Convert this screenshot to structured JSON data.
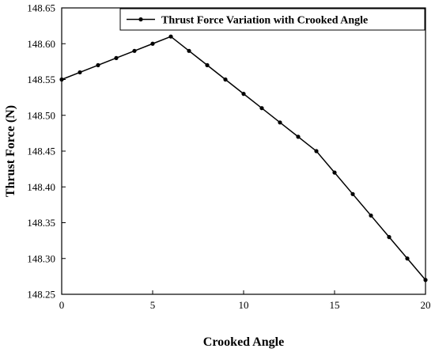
{
  "chart_data": {
    "type": "line",
    "title": "",
    "xlabel": "Crooked Angle",
    "ylabel": "Thrust Force (N)",
    "xlim": [
      0,
      20
    ],
    "ylim": [
      148.25,
      148.65
    ],
    "xticks": [
      "0",
      "5",
      "10",
      "15",
      "20"
    ],
    "yticks": [
      "148.25",
      "148.30",
      "148.35",
      "148.40",
      "148.45",
      "148.50",
      "148.55",
      "148.60",
      "148.65"
    ],
    "grid": false,
    "legend_position": "top-right",
    "series": [
      {
        "name": "Thrust Force Variation with Crooked Angle",
        "color": "#000000",
        "marker": "circle",
        "x": [
          0,
          1,
          2,
          3,
          4,
          5,
          6,
          7,
          8,
          9,
          10,
          11,
          12,
          13,
          14,
          15,
          16,
          17,
          18,
          19,
          20
        ],
        "y": [
          148.55,
          148.56,
          148.57,
          148.58,
          148.59,
          148.6,
          148.61,
          148.59,
          148.57,
          148.55,
          148.53,
          148.51,
          148.49,
          148.47,
          148.45,
          148.42,
          148.39,
          148.36,
          148.33,
          148.3,
          148.27
        ]
      }
    ]
  }
}
